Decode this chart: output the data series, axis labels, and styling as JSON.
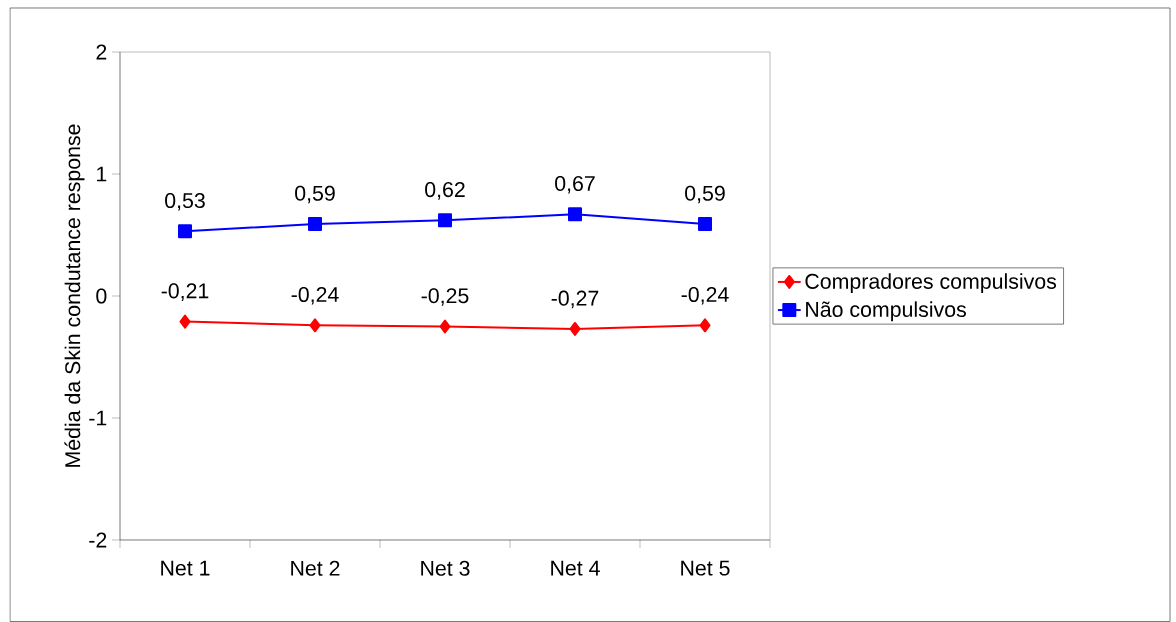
{
  "chart_data": {
    "type": "line",
    "ylabel": "Média da Skin condutance response",
    "categories": [
      "Net 1",
      "Net 2",
      "Net 3",
      "Net 4",
      "Net 5"
    ],
    "series": [
      {
        "name": "Compradores compulsivos",
        "color": "#ff0000",
        "marker": "diamond",
        "values": [
          -0.21,
          -0.24,
          -0.25,
          -0.27,
          -0.24
        ],
        "value_labels": [
          "-0,21",
          "-0,24",
          "-0,25",
          "-0,27",
          "-0,24"
        ]
      },
      {
        "name": "Não compulsivos",
        "color": "#0000ff",
        "marker": "square",
        "values": [
          0.53,
          0.59,
          0.62,
          0.67,
          0.59
        ],
        "value_labels": [
          "0,53",
          "0,59",
          "0,62",
          "0,67",
          "0,59"
        ]
      }
    ],
    "ylim": [
      -2,
      2
    ],
    "yticks": [
      -2,
      -1,
      0,
      1,
      2
    ],
    "legend": "right",
    "grid": false,
    "line_style": "solid"
  }
}
